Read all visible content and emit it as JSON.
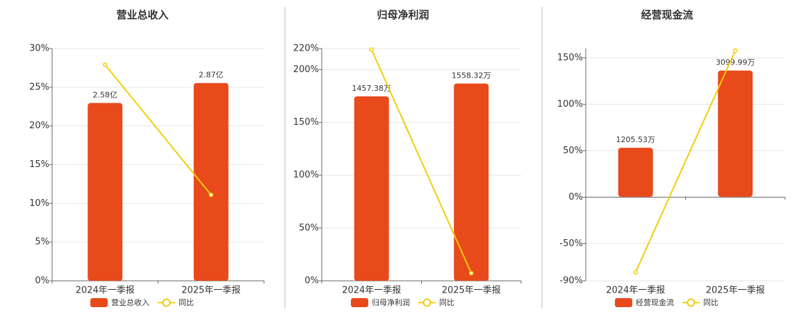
{
  "chart_data": [
    {
      "type": "combo",
      "title": "营业总收入",
      "categories": [
        "2024年一季报",
        "2025年一季报"
      ],
      "series": [
        {
          "name": "营业总收入",
          "type": "bar",
          "color": "#e84a1b",
          "axis": "y2",
          "values": [
            2.58,
            2.87
          ],
          "value_labels": [
            "2.58亿",
            "2.87亿"
          ]
        },
        {
          "name": "同比",
          "type": "line",
          "color": "#f2cc0c",
          "values": [
            27.9,
            11.1
          ]
        }
      ],
      "ylim": [
        0,
        30
      ],
      "y2lim": [
        0,
        3.37
      ],
      "yticks": [
        {
          "value": 0,
          "label": "0%"
        },
        {
          "value": 5,
          "label": "5%"
        },
        {
          "value": 10,
          "label": "10%"
        },
        {
          "value": 15,
          "label": "15%"
        },
        {
          "value": 20,
          "label": "20%"
        },
        {
          "value": 25,
          "label": "25%"
        },
        {
          "value": 30,
          "label": "30%"
        }
      ],
      "grid": true
    },
    {
      "type": "combo",
      "title": "归母净利润",
      "categories": [
        "2024年一季报",
        "2025年一季报"
      ],
      "series": [
        {
          "name": "归母净利润",
          "type": "bar",
          "color": "#e84a1b",
          "axis": "y2",
          "values": [
            1457.38,
            1558.32
          ],
          "value_labels": [
            "1457.38万",
            "1558.32万"
          ]
        },
        {
          "name": "同比",
          "type": "line",
          "color": "#f2cc0c",
          "values": [
            219,
            7.2
          ]
        }
      ],
      "ylim": [
        0,
        220
      ],
      "y2lim": [
        0,
        1835
      ],
      "yticks": [
        {
          "value": 0,
          "label": "0%"
        },
        {
          "value": 50,
          "label": "50%"
        },
        {
          "value": 100,
          "label": "100%"
        },
        {
          "value": 150,
          "label": "150%"
        },
        {
          "value": 200,
          "label": "200%"
        },
        {
          "value": 220,
          "label": "220%"
        }
      ],
      "grid": true
    },
    {
      "type": "combo",
      "title": "经营现金流",
      "categories": [
        "2024年一季报",
        "2025年一季报"
      ],
      "series": [
        {
          "name": "经营现金流",
          "type": "bar",
          "color": "#e84a1b",
          "axis": "y2",
          "values": [
            1205.53,
            3099.99
          ],
          "value_labels": [
            "1205.53万",
            "3099.99万"
          ]
        },
        {
          "name": "同比",
          "type": "line",
          "color": "#f2cc0c",
          "values": [
            -80.8,
            157.8
          ]
        }
      ],
      "ylim": [
        -90,
        160
      ],
      "y2lim": [
        -2060,
        3640
      ],
      "yticks": [
        {
          "value": -90,
          "label": "-90%"
        },
        {
          "value": -50,
          "label": "-50%"
        },
        {
          "value": 0,
          "label": "0%"
        },
        {
          "value": 50,
          "label": "50%"
        },
        {
          "value": 100,
          "label": "100%"
        },
        {
          "value": 150,
          "label": "150%"
        }
      ],
      "grid": true
    }
  ]
}
